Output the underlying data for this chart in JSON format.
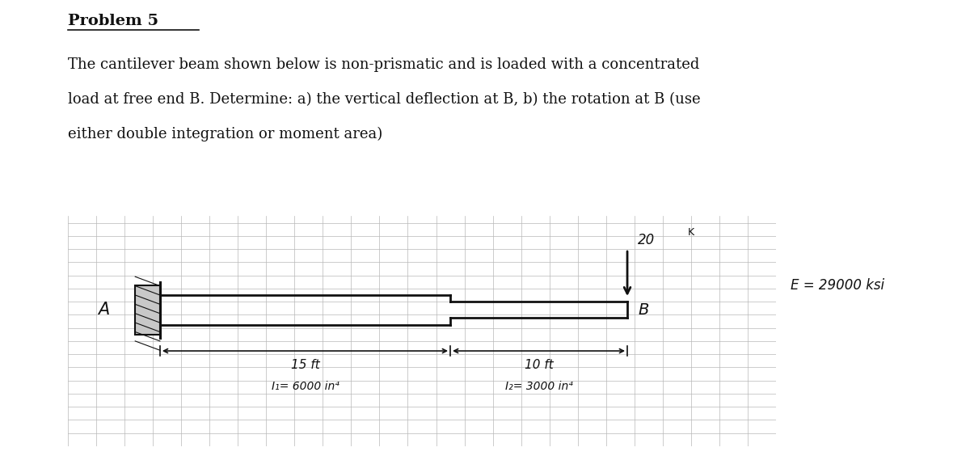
{
  "title": "Problem 5",
  "description_lines": [
    "The cantilever beam shown below is non-prismatic and is loaded with a concentrated",
    "load at free end B. Determine: a) the vertical deflection at B, b) the rotation at B (use",
    "either double integration or moment area)"
  ],
  "bg_color": "#ffffff",
  "diagram_bg": "#d4d4d4",
  "grid_color": "#b8b8b8",
  "beam_color": "#111111",
  "text_color": "#111111",
  "span1_label": "15 ft",
  "span2_label": "10 ft",
  "I1_label": "I₁= 6000 in⁴",
  "I2_label": "I₂= 3000 in⁴",
  "E_label": "E = 29000 ksi"
}
